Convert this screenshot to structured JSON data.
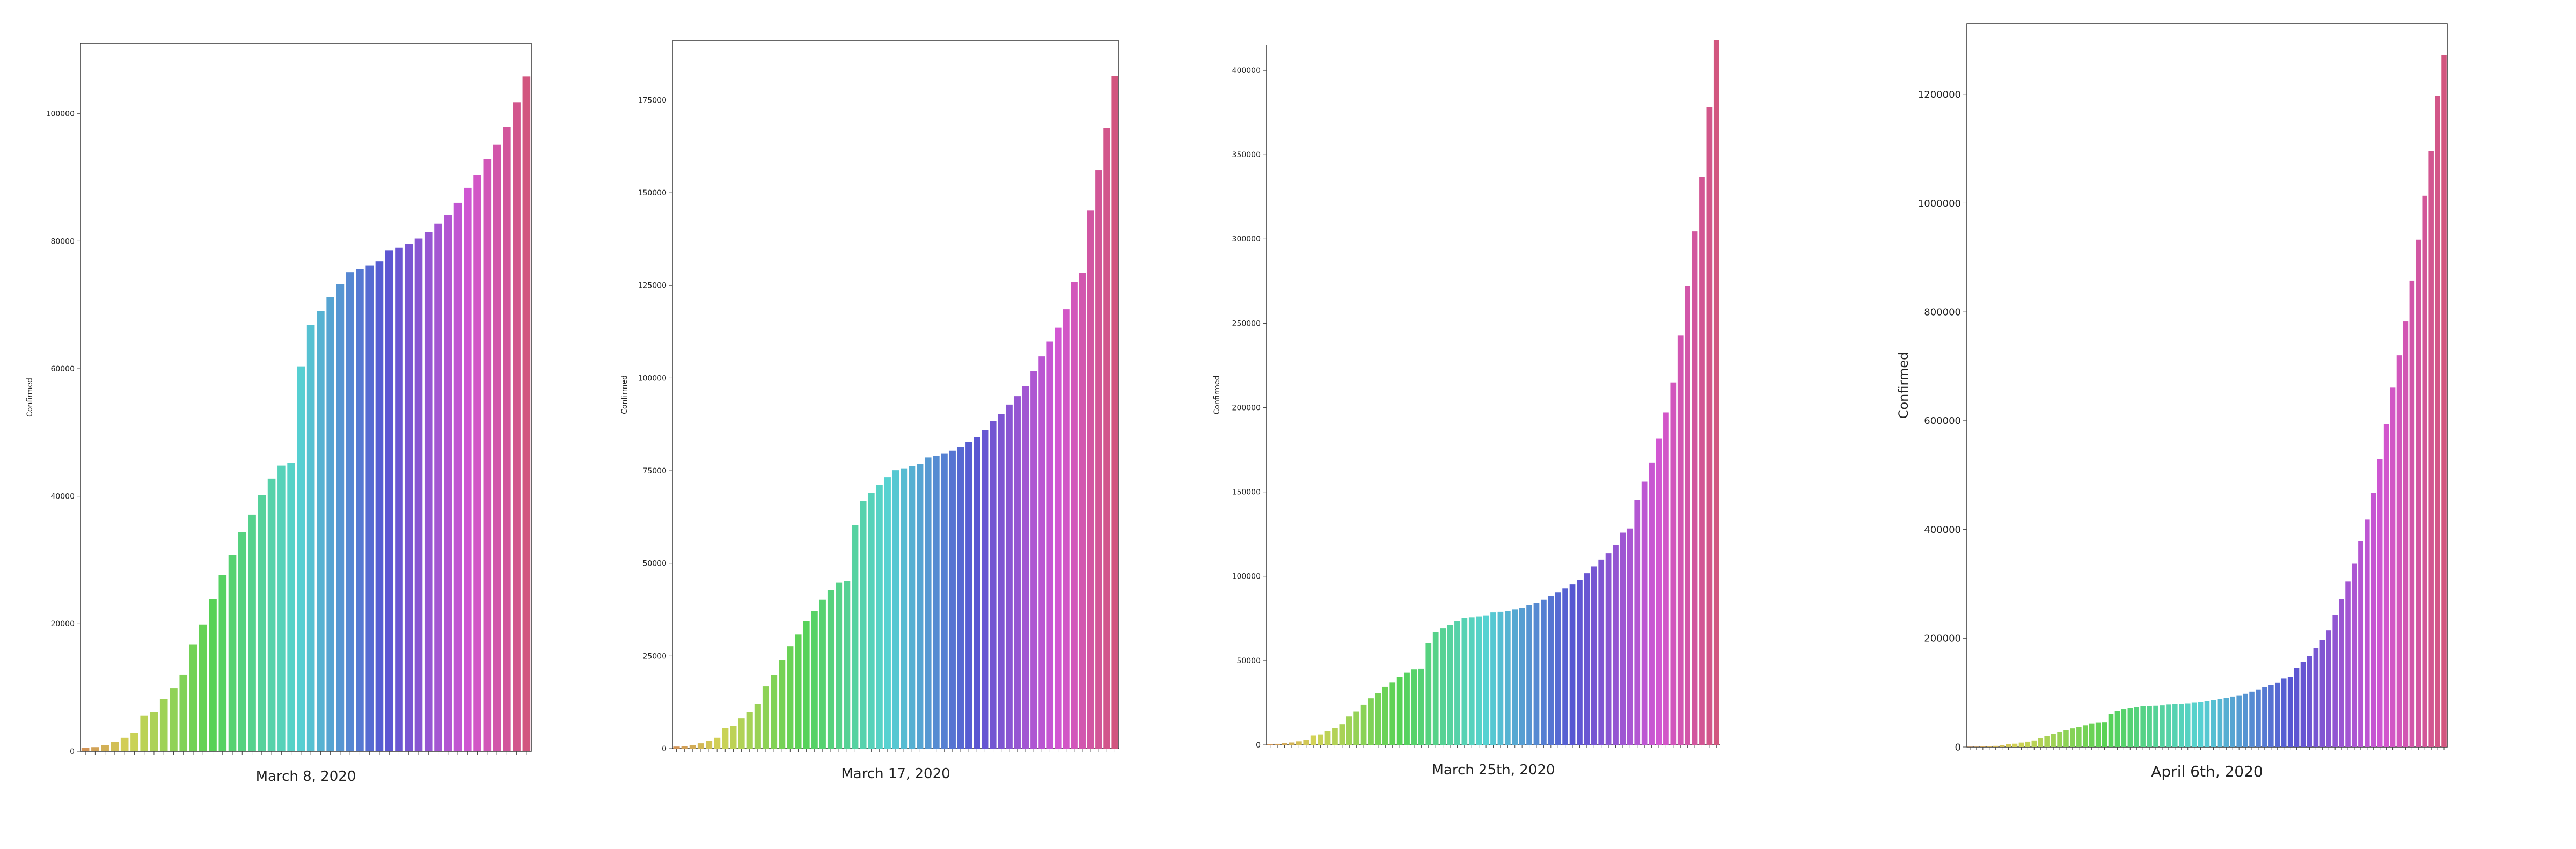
{
  "chart_data": [
    {
      "type": "bar",
      "title": "",
      "caption": "March 8, 2020",
      "xlabel": "",
      "ylabel": "Confirmed",
      "ylim": [
        0,
        111000
      ],
      "yticks": [
        0,
        20000,
        40000,
        60000,
        80000,
        100000
      ],
      "ytick_labels": [
        "0",
        "20000",
        "40000",
        "60000",
        "80000",
        "100000"
      ],
      "values": [
        555,
        654,
        941,
        1434,
        2118,
        2927,
        5578,
        6166,
        8235,
        9925,
        12038,
        16787,
        19881,
        23892,
        27635,
        30794,
        34391,
        37120,
        40150,
        42762,
        44802,
        45221,
        60368,
        66885,
        69030,
        71224,
        73258,
        75136,
        75639,
        76197,
        76819,
        78572,
        78958,
        79561,
        80406,
        81388,
        82746,
        84112,
        86011,
        88369,
        90306,
        92840,
        95120,
        97886,
        101800,
        105836
      ]
    },
    {
      "type": "bar",
      "title": "",
      "caption": "March 17, 2020",
      "xlabel": "",
      "ylabel": "Confirmed",
      "ylim": [
        0,
        191000
      ],
      "yticks": [
        0,
        25000,
        50000,
        75000,
        100000,
        125000,
        150000,
        175000
      ],
      "ytick_labels": [
        "0",
        "25000",
        "50000",
        "75000",
        "100000",
        "125000",
        "150000",
        "175000"
      ],
      "values": [
        555,
        654,
        941,
        1434,
        2118,
        2927,
        5578,
        6166,
        8235,
        9925,
        12038,
        16787,
        19881,
        23892,
        27635,
        30794,
        34391,
        37120,
        40150,
        42762,
        44802,
        45221,
        60368,
        66885,
        69030,
        71224,
        73258,
        75136,
        75639,
        76197,
        76819,
        78572,
        78958,
        79561,
        80406,
        81388,
        82746,
        84112,
        86011,
        88369,
        90306,
        92840,
        95120,
        97886,
        101800,
        105836,
        109835,
        113582,
        118582,
        125865,
        128343,
        145193,
        156097,
        167449,
        181546
      ]
    },
    {
      "type": "bar",
      "title": "",
      "caption": "March 25th, 2020",
      "xlabel": "",
      "ylabel": "Confirmed",
      "ylim": [
        0,
        415000
      ],
      "yticks": [
        0,
        50000,
        100000,
        150000,
        200000,
        250000,
        300000,
        350000,
        400000
      ],
      "ytick_labels": [
        "0",
        "50000",
        "100000",
        "150000",
        "200000",
        "250000",
        "300000",
        "350000",
        "400000"
      ],
      "values": [
        555,
        654,
        941,
        1434,
        2118,
        2927,
        5578,
        6166,
        8235,
        9925,
        12038,
        16787,
        19881,
        23892,
        27635,
        30794,
        34391,
        37120,
        40150,
        42762,
        44802,
        45221,
        60368,
        66885,
        69030,
        71224,
        73258,
        75136,
        75639,
        76197,
        76819,
        78572,
        78958,
        79561,
        80406,
        81388,
        82746,
        84112,
        86011,
        88369,
        90306,
        92840,
        95120,
        97886,
        101800,
        105836,
        109835,
        113582,
        118582,
        125865,
        128343,
        145193,
        156097,
        167449,
        181546,
        197168,
        214915,
        242713,
        272167,
        304528,
        336953,
        378235,
        417966
      ]
    },
    {
      "type": "bar",
      "title": "",
      "caption": "April 6th, 2020",
      "xlabel": "",
      "ylabel": "Confirmed",
      "ylim": [
        0,
        1330000
      ],
      "yticks": [
        0,
        200000,
        400000,
        600000,
        800000,
        1000000,
        1200000
      ],
      "ytick_labels": [
        "0",
        "200000",
        "400000",
        "600000",
        "800000",
        "1000000",
        "1200000"
      ],
      "values": [
        555,
        654,
        941,
        1434,
        2118,
        2927,
        5578,
        6166,
        8235,
        9925,
        12038,
        16787,
        19881,
        23892,
        27635,
        30794,
        34391,
        37120,
        40150,
        42762,
        44802,
        45221,
        60368,
        66885,
        69030,
        71224,
        73258,
        75136,
        75639,
        76197,
        76819,
        78572,
        78958,
        79561,
        80406,
        81388,
        82746,
        84112,
        86011,
        88369,
        90306,
        92840,
        95120,
        97886,
        101800,
        105836,
        109835,
        113582,
        118582,
        125865,
        128343,
        145193,
        156097,
        167449,
        181546,
        197168,
        214915,
        242713,
        272167,
        304528,
        336953,
        378235,
        417966,
        467594,
        529591,
        593291,
        660706,
        720117,
        782365,
        857487,
        932605,
        1013466,
        1095917,
        1197405,
        1272115
      ]
    }
  ]
}
